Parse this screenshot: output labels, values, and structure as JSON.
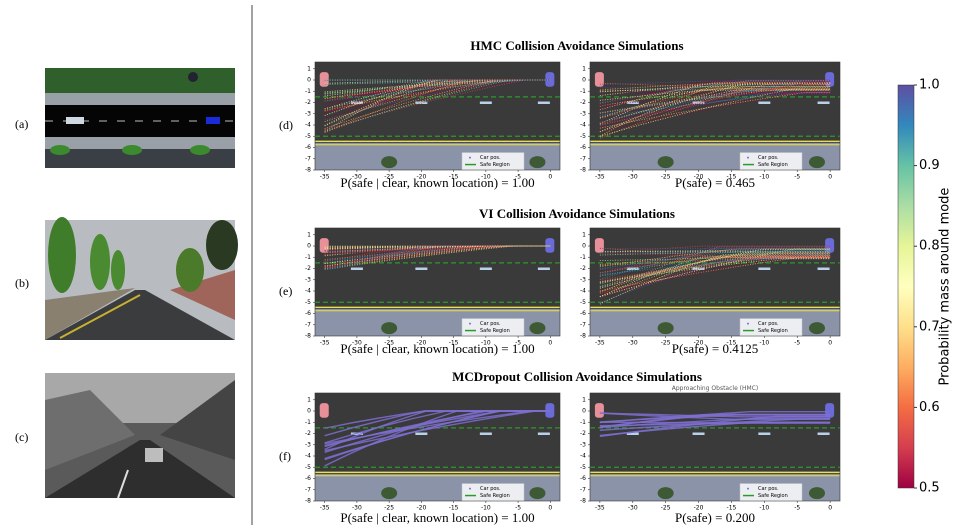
{
  "panels": [
    {
      "label": "(a)"
    },
    {
      "label": "(b)"
    },
    {
      "label": "(c)"
    }
  ],
  "rows": [
    {
      "label": "(d)",
      "title": "HMC Collision Avoidance Simulations",
      "plots": [
        {
          "caption": "P(safe | clear, known location) = 1.00"
        },
        {
          "caption": "P(safe) = 0.465"
        }
      ]
    },
    {
      "label": "(e)",
      "title": "VI Collision Avoidance Simulations",
      "plots": [
        {
          "caption": "P(safe | clear, known location) = 1.00"
        },
        {
          "caption": "P(safe) = 0.4125"
        }
      ]
    },
    {
      "label": "(f)",
      "title": "MCDropout Collision Avoidance Simulations",
      "plots": [
        {
          "caption": "P(safe | clear, known location) = 1.00"
        },
        {
          "caption": "P(safe) = 0.200",
          "note": "Approaching Obstacle (HMC)"
        }
      ]
    }
  ],
  "plot_axes": {
    "xticks": [
      -35,
      -30,
      -25,
      -20,
      -15,
      -10,
      -5,
      0
    ],
    "yticks": [
      1,
      0,
      -1,
      -2,
      -3,
      -4,
      -5,
      -6,
      -7,
      -8
    ]
  },
  "legend": [
    "Car pos.",
    "Safe Region"
  ],
  "colorbar": {
    "label": "Probability mass around mode",
    "ticks": [
      {
        "value": 0.5,
        "label": "0.5"
      },
      {
        "value": 0.6,
        "label": "0.6"
      },
      {
        "value": 0.7,
        "label": "0.7"
      },
      {
        "value": 0.8,
        "label": "0.8"
      },
      {
        "value": 0.9,
        "label": "0.9"
      },
      {
        "value": 1.0,
        "label": "1.0"
      }
    ]
  }
}
